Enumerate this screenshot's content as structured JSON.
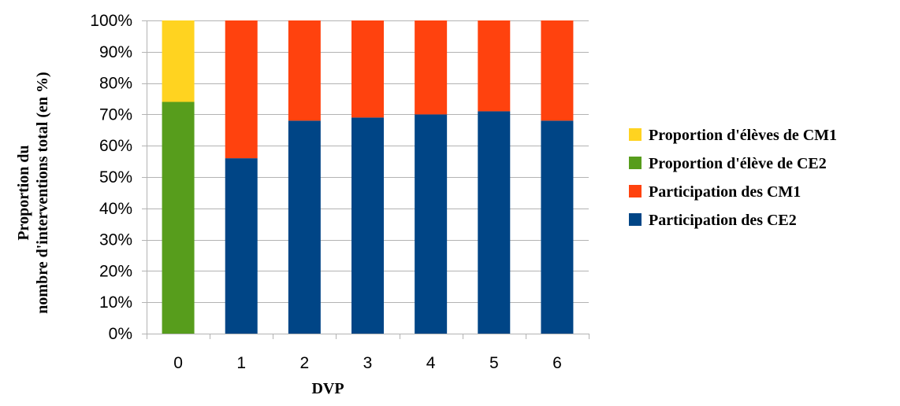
{
  "chart_data": {
    "type": "bar",
    "stacked": true,
    "percent_stacked": true,
    "categories": [
      "0",
      "1",
      "2",
      "3",
      "4",
      "5",
      "6"
    ],
    "series": [
      {
        "name": "Participation des CE2",
        "color": "#004586",
        "values": [
          null,
          56,
          68,
          69,
          70,
          71,
          68
        ]
      },
      {
        "name": "Participation des CM1",
        "color": "#ff420e",
        "values": [
          null,
          44,
          32,
          31,
          30,
          29,
          32
        ]
      },
      {
        "name": "Proportion d'élève de CE2",
        "color": "#579d1c",
        "values": [
          74,
          null,
          null,
          null,
          null,
          null,
          null
        ]
      },
      {
        "name": "Proportion d'élèves de CM1",
        "color": "#ffd320",
        "values": [
          26,
          null,
          null,
          null,
          null,
          null,
          null
        ]
      }
    ],
    "legend_order": [
      "Proportion d'élèves de CM1",
      "Proportion d'élève de CE2",
      "Participation des CM1",
      "Participation des CE2"
    ],
    "legend_position": "right",
    "xlabel": "DVP",
    "ylabel": [
      "Proportion du",
      "nombre d'interventions total (en %)"
    ],
    "ylim": [
      0,
      100
    ],
    "yticks": [
      "0%",
      "10%",
      "20%",
      "30%",
      "40%",
      "50%",
      "60%",
      "70%",
      "80%",
      "90%",
      "100%"
    ],
    "grid": true
  }
}
